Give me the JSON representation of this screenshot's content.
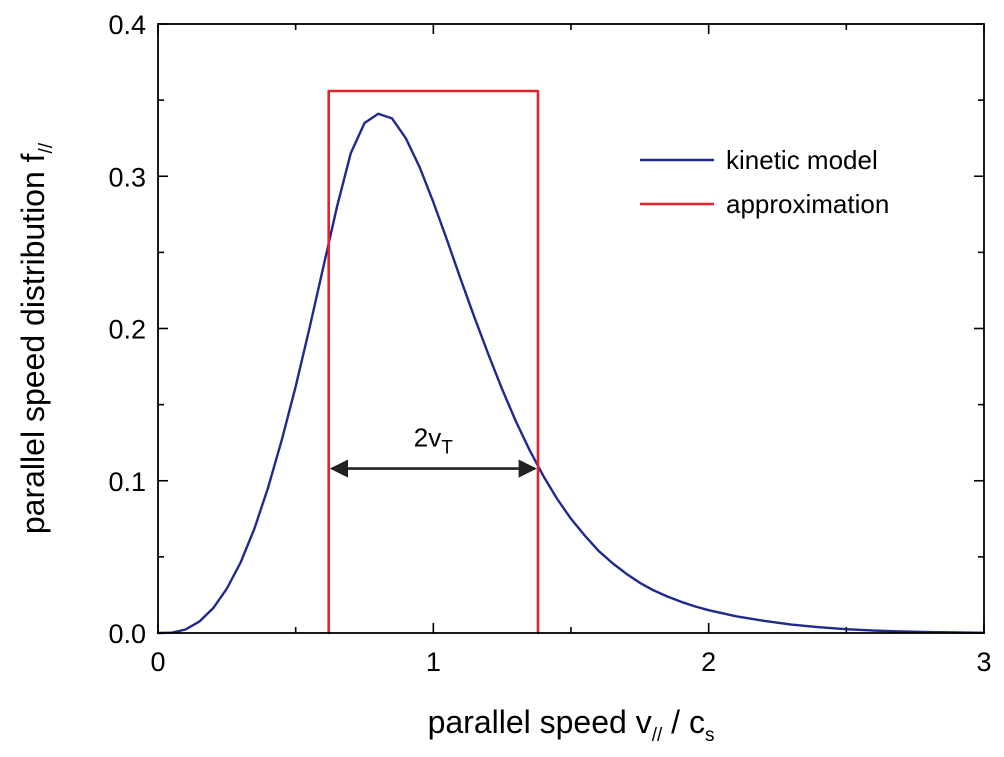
{
  "chart_data": {
    "type": "line",
    "xlabel": {
      "main": "parallel speed  v",
      "sub": "//",
      "rest": " / c",
      "sub2": "s"
    },
    "ylabel": {
      "main": "parallel speed distribution f",
      "sub": "//"
    },
    "xlim": [
      0,
      3
    ],
    "ylim": [
      0,
      0.4
    ],
    "x_ticks": [
      0,
      1,
      2,
      3
    ],
    "x_tick_labels": [
      "0",
      "1",
      "2",
      "3"
    ],
    "y_ticks": [
      0.0,
      0.1,
      0.2,
      0.3,
      0.4
    ],
    "y_tick_labels": [
      "0.0",
      "0.1",
      "0.2",
      "0.3",
      "0.4"
    ],
    "grid": false,
    "legend_position": "top-right",
    "series": [
      {
        "name": "kinetic model",
        "color": "#1f2a8c",
        "x": [
          0.0,
          0.05,
          0.1,
          0.15,
          0.2,
          0.25,
          0.3,
          0.35,
          0.4,
          0.45,
          0.5,
          0.55,
          0.6,
          0.65,
          0.7,
          0.75,
          0.8,
          0.85,
          0.9,
          0.95,
          1.0,
          1.05,
          1.1,
          1.15,
          1.2,
          1.25,
          1.3,
          1.35,
          1.4,
          1.45,
          1.5,
          1.55,
          1.6,
          1.65,
          1.7,
          1.75,
          1.8,
          1.85,
          1.9,
          1.95,
          2.0,
          2.1,
          2.2,
          2.3,
          2.4,
          2.5,
          2.6,
          2.7,
          2.8,
          2.9,
          3.0
        ],
        "y": [
          0.0,
          0.0002,
          0.0023,
          0.0075,
          0.0162,
          0.0291,
          0.0463,
          0.0685,
          0.0955,
          0.127,
          0.162,
          0.2,
          0.24,
          0.28,
          0.315,
          0.335,
          0.341,
          0.338,
          0.325,
          0.306,
          0.283,
          0.258,
          0.232,
          0.207,
          0.183,
          0.16,
          0.139,
          0.12,
          0.103,
          0.088,
          0.075,
          0.064,
          0.054,
          0.046,
          0.039,
          0.033,
          0.028,
          0.024,
          0.0205,
          0.0175,
          0.015,
          0.011,
          0.008,
          0.0055,
          0.0038,
          0.0025,
          0.0016,
          0.001,
          0.0006,
          0.0003,
          0.0001
        ]
      },
      {
        "name": "approximation",
        "color": "#e8222a",
        "x": [
          0.62,
          0.62,
          1.38,
          1.38
        ],
        "y": [
          0.0,
          0.356,
          0.356,
          0.0
        ]
      }
    ],
    "annotations": [
      {
        "label_main": "2v",
        "label_sub": "T",
        "x_start": 0.62,
        "x_end": 1.38,
        "y": 0.108,
        "color": "#222222"
      }
    ]
  }
}
